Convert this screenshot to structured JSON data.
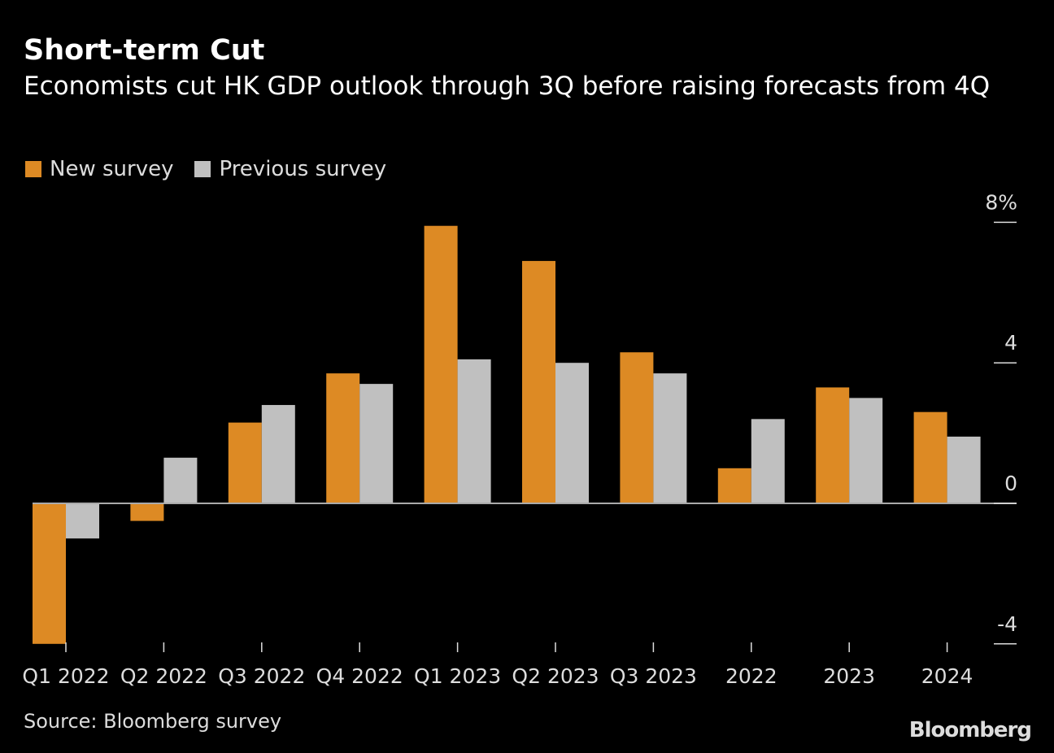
{
  "chart_data": {
    "type": "bar",
    "title": "Short-term Cut",
    "subtitle": "Economists cut HK GDP outlook through 3Q before raising forecasts from 4Q",
    "categories": [
      "Q1 2022",
      "Q2 2022",
      "Q3 2022",
      "Q4 2022",
      "Q1 2023",
      "Q2 2023",
      "Q3 2023",
      "2022",
      "2023",
      "2024"
    ],
    "series": [
      {
        "name": "New survey",
        "color": "#dd8a24",
        "values": [
          -4.0,
          -0.5,
          2.3,
          3.7,
          7.9,
          6.9,
          4.3,
          1.0,
          3.3,
          2.6
        ]
      },
      {
        "name": "Previous survey",
        "color": "#c0c0c0",
        "values": [
          -1.0,
          1.3,
          2.8,
          3.4,
          4.1,
          4.0,
          3.7,
          2.4,
          3.0,
          1.9
        ]
      }
    ],
    "yticks": [
      {
        "value": 8,
        "label": "8%"
      },
      {
        "value": 4,
        "label": "4"
      },
      {
        "value": 0,
        "label": "0"
      },
      {
        "value": -4,
        "label": "-4"
      }
    ],
    "ylim": [
      -4,
      8
    ],
    "legend": "top-left",
    "axis_position": "right",
    "grid": false
  },
  "source": "Source: Bloomberg survey",
  "logo": "Bloomberg"
}
